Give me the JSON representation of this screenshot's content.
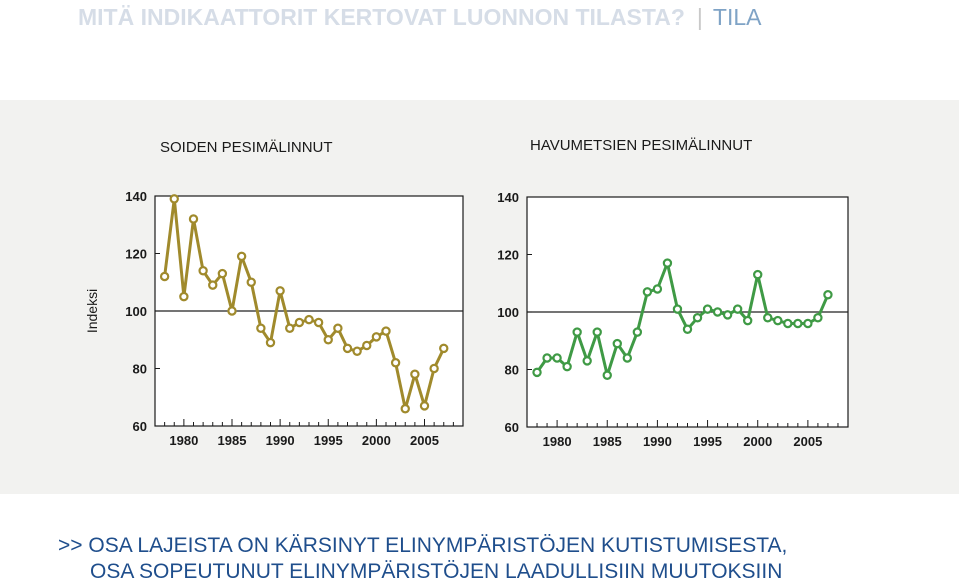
{
  "header": {
    "title": "MITÄ INDIKAATTORIT KERTOVAT LUONNON TILASTA?",
    "separator": "|",
    "section": "TILA"
  },
  "footer": {
    "line1": ">> OSA LAJEISTA ON KÄRSINYT ELINYMPÄRISTÖJEN KUTISTUMISESTA,",
    "line2": "OSA SOPEUTUNUT ELINYMPÄRISTÖJEN LAADULLISIIN MUUTOKSIIN"
  },
  "colors": {
    "left_series": "#a08a2c",
    "right_series": "#3f9a45",
    "header_title": "#d6dde7",
    "header_section": "#7fa3c6",
    "footer_text": "#1f4e8c",
    "panel_bg": "#f2f2f0"
  },
  "chart_data": [
    {
      "type": "line",
      "title": "SOIDEN PESIMÄLINNUT",
      "ylabel": "Indeksi",
      "xlabel": "",
      "xlim": [
        1977,
        2009
      ],
      "ylim": [
        60,
        140
      ],
      "yticks": [
        60,
        80,
        100,
        120,
        140
      ],
      "xticks": [
        1980,
        1985,
        1990,
        1995,
        2000,
        2005
      ],
      "reference_line": 100,
      "grid": false,
      "x": [
        1978,
        1979,
        1980,
        1981,
        1982,
        1983,
        1984,
        1985,
        1986,
        1987,
        1988,
        1989,
        1990,
        1991,
        1992,
        1993,
        1994,
        1995,
        1996,
        1997,
        1998,
        1999,
        2000,
        2001,
        2002,
        2003,
        2004,
        2005,
        2006,
        2007
      ],
      "values": [
        112,
        139,
        105,
        132,
        114,
        109,
        113,
        100,
        119,
        110,
        94,
        89,
        107,
        94,
        96,
        97,
        96,
        90,
        94,
        87,
        86,
        88,
        91,
        93,
        82,
        66,
        78,
        67,
        80,
        87
      ]
    },
    {
      "type": "line",
      "title": "HAVUMETSIEN PESIMÄLINNUT",
      "ylabel": "",
      "xlabel": "",
      "xlim": [
        1977,
        2009
      ],
      "ylim": [
        60,
        140
      ],
      "yticks": [
        60,
        80,
        100,
        120,
        140
      ],
      "xticks": [
        1980,
        1985,
        1990,
        1995,
        2000,
        2005
      ],
      "reference_line": 100,
      "grid": false,
      "x": [
        1978,
        1979,
        1980,
        1981,
        1982,
        1983,
        1984,
        1985,
        1986,
        1987,
        1988,
        1989,
        1990,
        1991,
        1992,
        1993,
        1994,
        1995,
        1996,
        1997,
        1998,
        1999,
        2000,
        2001,
        2002,
        2003,
        2004,
        2005,
        2006,
        2007
      ],
      "values": [
        79,
        84,
        84,
        81,
        93,
        83,
        93,
        78,
        89,
        84,
        93,
        107,
        108,
        117,
        101,
        94,
        98,
        101,
        100,
        99,
        101,
        97,
        113,
        98,
        97,
        96,
        96,
        96,
        98,
        106
      ]
    }
  ]
}
